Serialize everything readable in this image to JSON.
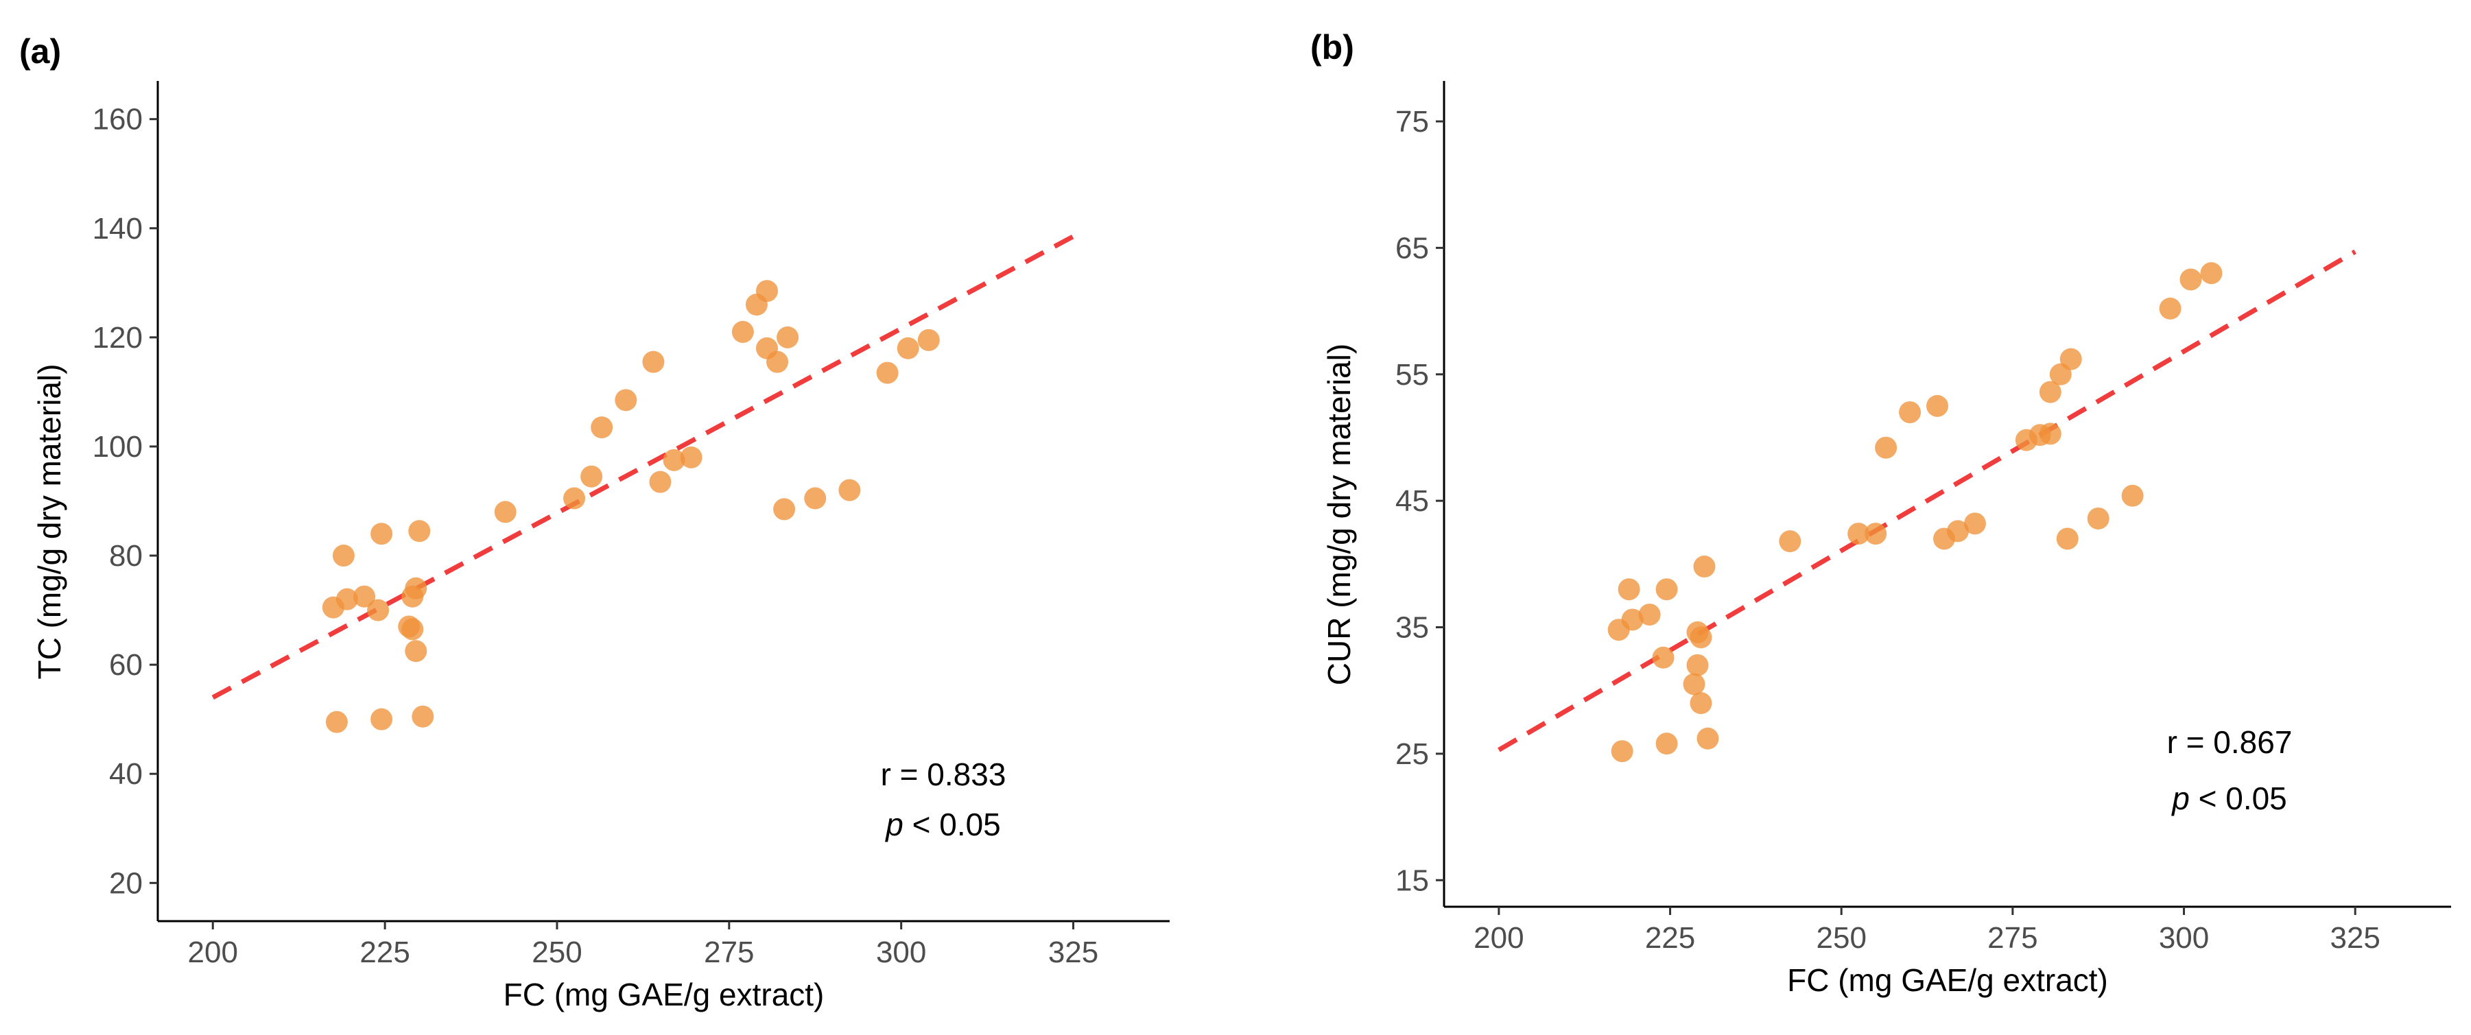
{
  "chart_data": [
    {
      "type": "scatter",
      "panel_label": "(a)",
      "xlabel": "FC (mg GAE/g extract)",
      "ylabel": "TC (mg/g dry material)",
      "xlim": [
        192,
        339
      ],
      "ylim": [
        13,
        167
      ],
      "xticks": [
        200,
        225,
        250,
        275,
        300,
        325
      ],
      "yticks": [
        20,
        40,
        60,
        80,
        100,
        120,
        140,
        160
      ],
      "points": [
        {
          "x": 217.5,
          "y": 70.5
        },
        {
          "x": 218.0,
          "y": 49.5
        },
        {
          "x": 219.0,
          "y": 80.0
        },
        {
          "x": 219.5,
          "y": 72.0
        },
        {
          "x": 222.0,
          "y": 72.5
        },
        {
          "x": 224.0,
          "y": 70.0
        },
        {
          "x": 224.5,
          "y": 84.0
        },
        {
          "x": 224.5,
          "y": 50.0
        },
        {
          "x": 228.5,
          "y": 67.0
        },
        {
          "x": 229.0,
          "y": 66.5
        },
        {
          "x": 229.0,
          "y": 72.5
        },
        {
          "x": 229.5,
          "y": 74.0
        },
        {
          "x": 229.5,
          "y": 62.5
        },
        {
          "x": 230.0,
          "y": 84.5
        },
        {
          "x": 230.5,
          "y": 50.5
        },
        {
          "x": 242.5,
          "y": 88.0
        },
        {
          "x": 252.5,
          "y": 90.5
        },
        {
          "x": 255.0,
          "y": 94.5
        },
        {
          "x": 256.5,
          "y": 103.5
        },
        {
          "x": 260.0,
          "y": 108.5
        },
        {
          "x": 264.0,
          "y": 115.5
        },
        {
          "x": 265.0,
          "y": 93.5
        },
        {
          "x": 267.0,
          "y": 97.5
        },
        {
          "x": 269.5,
          "y": 98.0
        },
        {
          "x": 277.0,
          "y": 121.0
        },
        {
          "x": 279.0,
          "y": 126.0
        },
        {
          "x": 280.5,
          "y": 128.5
        },
        {
          "x": 280.5,
          "y": 118.0
        },
        {
          "x": 282.0,
          "y": 115.5
        },
        {
          "x": 283.0,
          "y": 88.5
        },
        {
          "x": 283.5,
          "y": 120.0
        },
        {
          "x": 287.5,
          "y": 90.5
        },
        {
          "x": 292.5,
          "y": 92.0
        },
        {
          "x": 298.0,
          "y": 113.5
        },
        {
          "x": 301.0,
          "y": 118.0
        },
        {
          "x": 304.0,
          "y": 119.5
        }
      ],
      "trend_line": {
        "x": [
          200,
          325
        ],
        "y": [
          54,
          138.5
        ]
      },
      "annotation": {
        "r_text": "r = 0.833",
        "p_symbol": "p",
        "p_text": " < 0.05"
      },
      "colors": {
        "point": "#f0923a",
        "trend": "#f03c3c"
      }
    },
    {
      "type": "scatter",
      "panel_label": "(b)",
      "xlabel": "FC (mg GAE/g extract)",
      "ylabel": "CUR (mg/g dry material)",
      "xlim": [
        192,
        339
      ],
      "ylim": [
        12.9,
        78.2
      ],
      "xticks": [
        200,
        225,
        250,
        275,
        300,
        325
      ],
      "yticks": [
        15,
        25,
        35,
        45,
        55,
        65,
        75
      ],
      "points": [
        {
          "x": 217.5,
          "y": 34.8
        },
        {
          "x": 218.0,
          "y": 25.2
        },
        {
          "x": 219.0,
          "y": 38.0
        },
        {
          "x": 219.5,
          "y": 35.6
        },
        {
          "x": 222.0,
          "y": 36.0
        },
        {
          "x": 224.0,
          "y": 32.6
        },
        {
          "x": 224.5,
          "y": 38.0
        },
        {
          "x": 224.5,
          "y": 25.8
        },
        {
          "x": 228.5,
          "y": 30.5
        },
        {
          "x": 229.0,
          "y": 32.0
        },
        {
          "x": 229.0,
          "y": 34.6
        },
        {
          "x": 229.5,
          "y": 34.2
        },
        {
          "x": 229.5,
          "y": 29.0
        },
        {
          "x": 230.0,
          "y": 39.8
        },
        {
          "x": 230.5,
          "y": 26.2
        },
        {
          "x": 242.5,
          "y": 41.8
        },
        {
          "x": 252.5,
          "y": 42.4
        },
        {
          "x": 255.0,
          "y": 42.4
        },
        {
          "x": 256.5,
          "y": 49.2
        },
        {
          "x": 260.0,
          "y": 52.0
        },
        {
          "x": 264.0,
          "y": 52.5
        },
        {
          "x": 265.0,
          "y": 42.0
        },
        {
          "x": 267.0,
          "y": 42.6
        },
        {
          "x": 269.5,
          "y": 43.2
        },
        {
          "x": 277.0,
          "y": 49.8
        },
        {
          "x": 279.0,
          "y": 50.2
        },
        {
          "x": 280.5,
          "y": 53.6
        },
        {
          "x": 280.5,
          "y": 50.3
        },
        {
          "x": 282.0,
          "y": 55.0
        },
        {
          "x": 283.0,
          "y": 42.0
        },
        {
          "x": 283.5,
          "y": 56.2
        },
        {
          "x": 287.5,
          "y": 43.6
        },
        {
          "x": 292.5,
          "y": 45.4
        },
        {
          "x": 298.0,
          "y": 60.2
        },
        {
          "x": 301.0,
          "y": 62.5
        },
        {
          "x": 304.0,
          "y": 63.0
        }
      ],
      "trend_line": {
        "x": [
          200,
          325
        ],
        "y": [
          25.3,
          64.7
        ]
      },
      "annotation": {
        "r_text": "r = 0.867",
        "p_symbol": "p",
        "p_text": " < 0.05"
      },
      "colors": {
        "point": "#f0923a",
        "trend": "#f03c3c"
      }
    }
  ]
}
